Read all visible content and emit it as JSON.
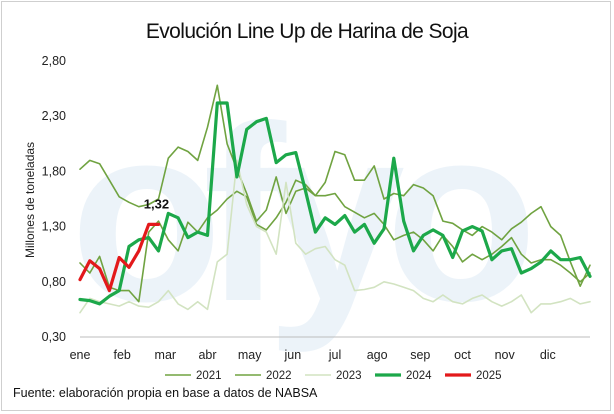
{
  "chart_data": {
    "type": "line",
    "title": "Evolución Line Up de Harina de Soja",
    "ylabel": "Millones de toneladas",
    "xlabel": "",
    "source": "Fuente: elaboración propia en base a datos de NABSA",
    "watermark": "ofyo",
    "ylim": [
      0.3,
      2.8
    ],
    "xlim": [
      0,
      52
    ],
    "y_ticks": [
      "0,30",
      "0,80",
      "1,30",
      "1,80",
      "2,30",
      "2,80"
    ],
    "y_tick_values": [
      0.3,
      0.8,
      1.3,
      1.8,
      2.3,
      2.8
    ],
    "x_ticks": [
      "ene",
      "feb",
      "mar",
      "abr",
      "may",
      "jun",
      "jul",
      "ago",
      "sep",
      "oct",
      "nov",
      "dic"
    ],
    "x_tick_weeks": [
      0,
      4.3,
      8.7,
      13,
      17.3,
      21.7,
      26,
      30.3,
      34.7,
      39,
      43.3,
      47.7
    ],
    "legend_position": "bottom",
    "grid": false,
    "annotation": {
      "text": "1,32",
      "series": "2025"
    },
    "series": [
      {
        "name": "2021",
        "color": "#70a341",
        "width": 1.6,
        "weeks": [
          0,
          1,
          2,
          3,
          4,
          5,
          6,
          7,
          8,
          9,
          10,
          11,
          12,
          13,
          14,
          15,
          16,
          17,
          18,
          19,
          20,
          21,
          22,
          23,
          24,
          25,
          26,
          27,
          28,
          29,
          30,
          31,
          32,
          33,
          34,
          35,
          36,
          37,
          38,
          39,
          40,
          41,
          42,
          43,
          44,
          45,
          46,
          47,
          48,
          49,
          50,
          51,
          52
        ],
        "values": [
          0.97,
          0.88,
          1.03,
          0.75,
          0.72,
          0.72,
          0.62,
          1.25,
          1.35,
          1.18,
          1.08,
          1.34,
          1.25,
          1.38,
          1.45,
          1.55,
          1.62,
          1.57,
          1.32,
          1.27,
          1.38,
          1.52,
          1.72,
          1.68,
          1.58,
          1.58,
          1.6,
          1.48,
          1.43,
          1.38,
          1.42,
          1.32,
          1.18,
          1.22,
          1.25,
          1.18,
          1.08,
          1.22,
          1.12,
          0.98,
          1.05,
          1.0,
          1.05,
          1.12,
          1.2,
          1.05,
          0.97,
          1.0,
          1.0,
          0.95,
          0.88,
          0.8,
          0.88
        ]
      },
      {
        "name": "2022",
        "color": "#70a341",
        "width": 1.6,
        "weeks": [
          0,
          1,
          2,
          3,
          4,
          5,
          6,
          7,
          8,
          9,
          10,
          11,
          12,
          13,
          14,
          15,
          16,
          17,
          18,
          19,
          20,
          21,
          22,
          23,
          24,
          25,
          26,
          27,
          28,
          29,
          30,
          31,
          32,
          33,
          34,
          35,
          36,
          37,
          38,
          39,
          40,
          41,
          42,
          43,
          44,
          45,
          46,
          47,
          48,
          49,
          50,
          51,
          52
        ],
        "values": [
          1.82,
          1.9,
          1.87,
          1.72,
          1.57,
          1.52,
          1.48,
          1.5,
          1.55,
          1.92,
          2.02,
          1.98,
          1.9,
          2.2,
          2.58,
          2.05,
          1.82,
          1.6,
          1.35,
          1.45,
          1.75,
          1.42,
          1.62,
          1.65,
          1.58,
          1.7,
          1.98,
          1.95,
          1.72,
          1.72,
          1.85,
          1.55,
          1.6,
          1.58,
          1.68,
          1.65,
          1.58,
          1.35,
          1.33,
          1.27,
          1.22,
          1.3,
          1.25,
          1.18,
          1.28,
          1.34,
          1.42,
          1.48,
          1.3,
          1.22,
          0.98,
          0.76,
          0.95
        ]
      },
      {
        "name": "2023",
        "color": "#d2e3c1",
        "width": 1.6,
        "weeks": [
          0,
          1,
          2,
          3,
          4,
          5,
          6,
          7,
          8,
          9,
          10,
          11,
          12,
          13,
          14,
          15,
          16,
          17,
          18,
          19,
          20,
          21,
          22,
          23,
          24,
          25,
          26,
          27,
          28,
          29,
          30,
          31,
          32,
          33,
          34,
          35,
          36,
          37,
          38,
          39,
          40,
          41,
          42,
          43,
          44,
          45,
          46,
          47,
          48,
          49,
          50,
          51,
          52
        ],
        "values": [
          0.52,
          0.65,
          0.62,
          0.6,
          0.58,
          0.62,
          0.58,
          0.57,
          0.62,
          0.72,
          0.6,
          0.55,
          0.62,
          0.55,
          0.98,
          1.05,
          1.9,
          1.5,
          1.3,
          1.25,
          1.05,
          1.7,
          1.15,
          1.05,
          1.1,
          1.12,
          1.0,
          0.95,
          0.72,
          0.73,
          0.75,
          0.8,
          0.78,
          0.75,
          0.72,
          0.65,
          0.62,
          0.68,
          0.62,
          0.6,
          0.65,
          0.68,
          0.62,
          0.58,
          0.62,
          0.68,
          0.52,
          0.6,
          0.6,
          0.62,
          0.65,
          0.6,
          0.62
        ]
      },
      {
        "name": "2024",
        "color": "#1ca84a",
        "width": 3.2,
        "weeks": [
          0,
          1,
          2,
          3,
          4,
          5,
          6,
          7,
          8,
          9,
          10,
          11,
          12,
          13,
          14,
          15,
          16,
          17,
          18,
          19,
          20,
          21,
          22,
          23,
          24,
          25,
          26,
          27,
          28,
          29,
          30,
          31,
          32,
          33,
          34,
          35,
          36,
          37,
          38,
          39,
          40,
          41,
          42,
          43,
          44,
          45,
          46,
          47,
          48,
          49,
          50,
          51,
          52
        ],
        "values": [
          0.64,
          0.63,
          0.6,
          0.67,
          0.72,
          1.12,
          1.18,
          1.2,
          1.08,
          1.42,
          1.38,
          1.2,
          1.25,
          1.22,
          2.42,
          2.42,
          1.75,
          2.18,
          2.25,
          2.28,
          1.88,
          1.95,
          1.97,
          1.62,
          1.25,
          1.38,
          1.32,
          1.4,
          1.25,
          1.32,
          1.15,
          1.28,
          1.92,
          1.35,
          1.08,
          1.22,
          1.27,
          1.22,
          1.02,
          1.26,
          1.3,
          1.26,
          1.0,
          1.08,
          1.1,
          0.88,
          0.92,
          0.98,
          1.08,
          1.0,
          1.0,
          1.02,
          0.85
        ]
      },
      {
        "name": "2025",
        "color": "#e3191b",
        "width": 3.2,
        "weeks": [
          0,
          1,
          2,
          3,
          4,
          5,
          6,
          7,
          8
        ],
        "values": [
          0.82,
          0.99,
          0.92,
          0.72,
          1.02,
          0.93,
          1.08,
          1.32,
          1.32
        ]
      }
    ]
  }
}
